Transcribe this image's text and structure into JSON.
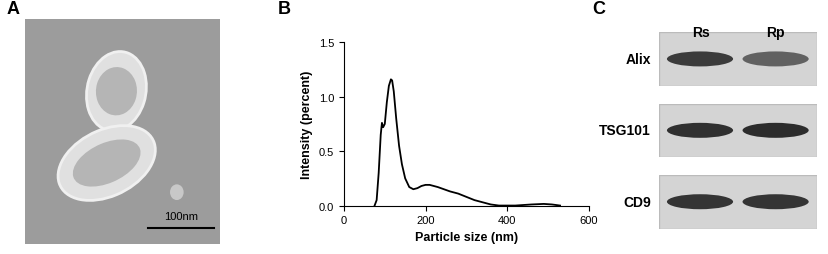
{
  "panel_labels": [
    "A",
    "B",
    "C"
  ],
  "image_panel": {
    "scale_bar": "100nm"
  },
  "blot_panel": {
    "columns": [
      "Rs",
      "Rp"
    ],
    "rows": [
      "Alix",
      "TSG101",
      "CD9"
    ]
  },
  "chart_data": {
    "type": "line",
    "x_label": "Particle size (nm)",
    "y_label": "Intensity (percent)",
    "x": [
      75,
      80,
      85,
      90,
      93,
      96,
      100,
      105,
      110,
      115,
      118,
      122,
      128,
      135,
      142,
      150,
      160,
      170,
      180,
      190,
      200,
      210,
      220,
      230,
      245,
      260,
      280,
      300,
      320,
      340,
      360,
      380,
      420,
      460,
      490,
      510,
      530
    ],
    "values": [
      0.0,
      0.05,
      0.3,
      0.65,
      0.76,
      0.72,
      0.75,
      0.95,
      1.1,
      1.16,
      1.15,
      1.05,
      0.8,
      0.55,
      0.38,
      0.25,
      0.17,
      0.15,
      0.16,
      0.18,
      0.19,
      0.19,
      0.18,
      0.17,
      0.15,
      0.13,
      0.11,
      0.08,
      0.05,
      0.03,
      0.01,
      0.0,
      0.0,
      0.01,
      0.015,
      0.01,
      0.0
    ],
    "color": "#000000",
    "xlim": [
      0,
      600
    ],
    "xticks": [
      0,
      200,
      400,
      600
    ],
    "ylim": [
      0.0,
      1.5
    ],
    "yticks": [
      0.0,
      0.5,
      1.0,
      1.5
    ],
    "grid": false
  }
}
